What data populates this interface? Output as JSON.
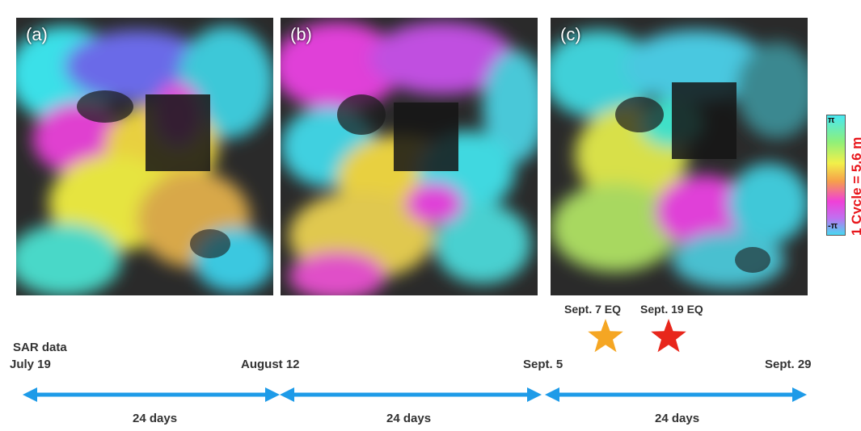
{
  "panels": [
    {
      "label": "(a)"
    },
    {
      "label": "(b)"
    },
    {
      "label": "(c)"
    }
  ],
  "colorbar": {
    "top_label": "π",
    "bottom_label": "-π",
    "caption": "1 Cycle = 5.6 m",
    "colors": [
      "#48e8f2",
      "#8ef07a",
      "#f2f04a",
      "#f6a04a",
      "#f040d8",
      "#c070f0",
      "#48d8f2"
    ]
  },
  "timeline": {
    "heading": "SAR data",
    "dates": [
      "July 19",
      "August 12",
      "Sept. 5",
      "Sept. 29"
    ],
    "intervals": [
      "24 days",
      "24 days",
      "24 days"
    ],
    "arrow_color": "#1e9be8"
  },
  "earthquakes": [
    {
      "label": "Sept. 7 EQ",
      "color": "#f5a623",
      "icon": "star-icon"
    },
    {
      "label": "Sept. 19 EQ",
      "color": "#e8261b",
      "icon": "star-icon"
    }
  ]
}
